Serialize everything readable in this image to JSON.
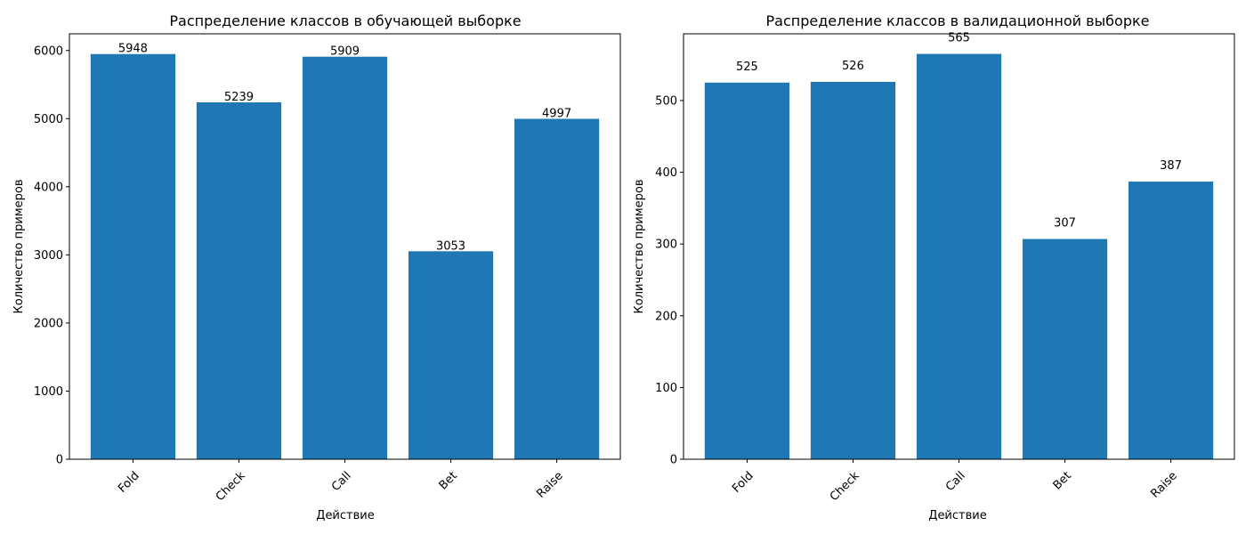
{
  "chart_data": [
    {
      "type": "bar",
      "title": "Распределение классов в обучающей выборке",
      "xlabel": "Действие",
      "ylabel": "Количество примеров",
      "categories": [
        "Fold",
        "Check",
        "Call",
        "Bet",
        "Raise"
      ],
      "values": [
        5948,
        5239,
        5909,
        3053,
        4997
      ],
      "data_labels": [
        "5948",
        "5239",
        "5909",
        "3053",
        "4997"
      ],
      "ylim": [
        0,
        6245
      ],
      "yticks": [
        0,
        1000,
        2000,
        3000,
        4000,
        5000,
        6000
      ],
      "ytick_labels": [
        "0",
        "1000",
        "2000",
        "3000",
        "4000",
        "5000",
        "6000"
      ],
      "xtick_rotation": 45,
      "bar_color": "#1f77b4",
      "grid": false,
      "legend": false
    },
    {
      "type": "bar",
      "title": "Распределение классов в валидационной выборке",
      "xlabel": "Действие",
      "ylabel": "Количество примеров",
      "categories": [
        "Fold",
        "Check",
        "Call",
        "Bet",
        "Raise"
      ],
      "values": [
        525,
        526,
        565,
        307,
        387
      ],
      "data_labels": [
        "525",
        "526",
        "565",
        "307",
        "387"
      ],
      "ylim": [
        0,
        593
      ],
      "yticks": [
        0,
        100,
        200,
        300,
        400,
        500
      ],
      "ytick_labels": [
        "0",
        "100",
        "200",
        "300",
        "400",
        "500"
      ],
      "xtick_rotation": 45,
      "bar_color": "#1f77b4",
      "grid": false,
      "legend": false
    }
  ]
}
